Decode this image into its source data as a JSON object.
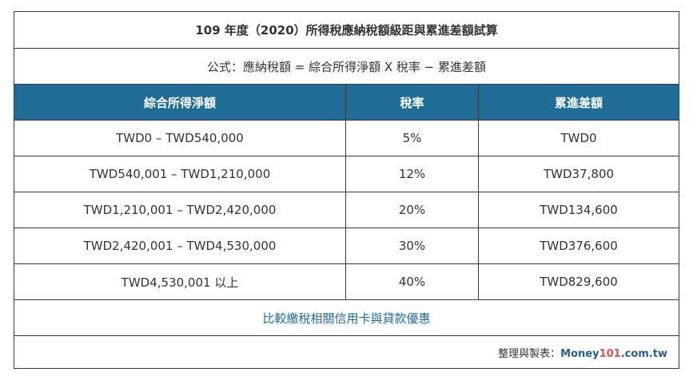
{
  "title": "109 年度（2020）所得稅應納稅額級距與累進差額試算",
  "formula": "公式：應納稅額 = 綜合所得淨額 X 稅率 − 累進差額",
  "columns": [
    "綜合所得淨額",
    "稅率",
    "累進差額"
  ],
  "rows": [
    [
      "TWD0 – TWD540,000",
      "5%",
      "TWD0"
    ],
    [
      "TWD540,001 – TWD1,210,000",
      "12%",
      "TWD37,800"
    ],
    [
      "TWD1,210,001 – TWD2,420,000",
      "20%",
      "TWD134,600"
    ],
    [
      "TWD2,420,001 – TWD4,530,000",
      "30%",
      "TWD376,600"
    ],
    [
      "TWD4,530,001 以上",
      "40%",
      "TWD829,600"
    ]
  ],
  "link_text": "比較繳稅相關信用卡與貸款優惠",
  "footer": {
    "label": "整理與製表：",
    "brand_a": "Money",
    "brand_num": "101",
    "brand_b": ".com.tw"
  },
  "colors": {
    "header_bg": "#1f6c97",
    "link": "#1f6c97"
  }
}
